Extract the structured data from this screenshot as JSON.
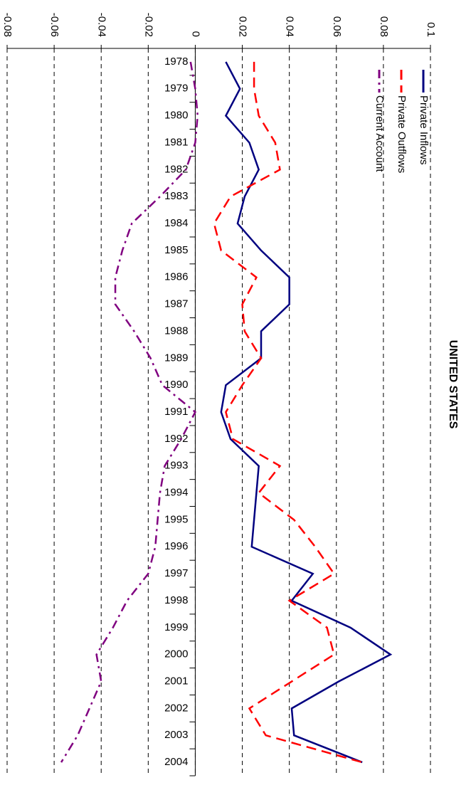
{
  "chart_data": {
    "type": "line",
    "title": "UNITED STATES",
    "orientation": "rotated",
    "categories": [
      "1978",
      "1979",
      "1980",
      "1981",
      "1982",
      "1983",
      "1984",
      "1985",
      "1986",
      "1987",
      "1988",
      "1989",
      "1990",
      "1991",
      "1992",
      "1993",
      "1994",
      "1995",
      "1996",
      "1997",
      "1998",
      "1999",
      "2000",
      "2001",
      "2002",
      "2003",
      "2004"
    ],
    "series": [
      {
        "name": "Private Inflows",
        "color": "#000080",
        "line_style": "solid",
        "values": [
          0.013,
          0.019,
          0.013,
          0.023,
          0.027,
          0.021,
          0.018,
          0.028,
          0.04,
          0.04,
          0.028,
          0.028,
          0.013,
          0.011,
          0.015,
          0.027,
          0.026,
          0.025,
          0.024,
          0.05,
          0.041,
          0.066,
          0.083,
          0.061,
          0.041,
          0.042,
          0.071
        ]
      },
      {
        "name": "Private Outflows",
        "color": "#ff0000",
        "line_style": "dashed",
        "values": [
          0.025,
          0.025,
          0.027,
          0.034,
          0.036,
          0.015,
          0.008,
          0.011,
          0.026,
          0.02,
          0.021,
          0.028,
          0.02,
          0.013,
          0.016,
          0.036,
          0.027,
          0.042,
          0.051,
          0.059,
          0.04,
          0.056,
          0.059,
          0.041,
          0.023,
          0.03,
          0.071
        ]
      },
      {
        "name": "Current Account",
        "color": "#800080",
        "line_style": "dashdot",
        "values": [
          -0.002,
          0.0,
          0.001,
          0.0,
          -0.004,
          -0.015,
          -0.027,
          -0.031,
          -0.034,
          -0.034,
          -0.026,
          -0.019,
          -0.014,
          0.0,
          -0.006,
          -0.013,
          -0.015,
          -0.016,
          -0.017,
          -0.02,
          -0.029,
          -0.035,
          -0.042,
          -0.04,
          -0.045,
          -0.05,
          -0.057
        ]
      }
    ],
    "ylim": [
      -0.08,
      0.1
    ],
    "yticks": [
      -0.08,
      -0.06,
      -0.04,
      -0.02,
      0,
      0.02,
      0.04,
      0.06,
      0.08,
      0.1
    ],
    "grid": true
  }
}
